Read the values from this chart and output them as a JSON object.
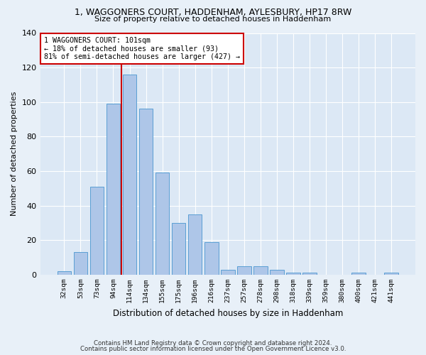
{
  "title1": "1, WAGGONERS COURT, HADDENHAM, AYLESBURY, HP17 8RW",
  "title2": "Size of property relative to detached houses in Haddenham",
  "xlabel": "Distribution of detached houses by size in Haddenham",
  "ylabel": "Number of detached properties",
  "categories": [
    "32sqm",
    "53sqm",
    "73sqm",
    "94sqm",
    "114sqm",
    "134sqm",
    "155sqm",
    "175sqm",
    "196sqm",
    "216sqm",
    "237sqm",
    "257sqm",
    "278sqm",
    "298sqm",
    "318sqm",
    "339sqm",
    "359sqm",
    "380sqm",
    "400sqm",
    "421sqm",
    "441sqm"
  ],
  "values": [
    2,
    13,
    51,
    99,
    116,
    96,
    59,
    30,
    35,
    19,
    3,
    5,
    5,
    3,
    1,
    1,
    0,
    0,
    1,
    0,
    1
  ],
  "bar_color": "#aec6e8",
  "bar_edge_color": "#5a9fd4",
  "vline_x": 3.5,
  "vline_color": "#cc0000",
  "annotation_text": "1 WAGGONERS COURT: 101sqm\n← 18% of detached houses are smaller (93)\n81% of semi-detached houses are larger (427) →",
  "annotation_box_color": "#ffffff",
  "annotation_box_edge": "#cc0000",
  "bg_color": "#e8f0f8",
  "plot_bg_color": "#dce8f5",
  "footer1": "Contains HM Land Registry data © Crown copyright and database right 2024.",
  "footer2": "Contains public sector information licensed under the Open Government Licence v3.0.",
  "ylim": [
    0,
    140
  ],
  "yticks": [
    0,
    20,
    40,
    60,
    80,
    100,
    120,
    140
  ]
}
